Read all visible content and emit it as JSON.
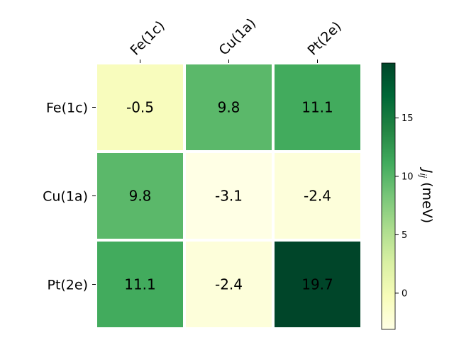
{
  "chart_data": {
    "type": "heatmap",
    "x_labels": [
      "Fe(1c)",
      "Cu(1a)",
      "Pt(2e)"
    ],
    "y_labels": [
      "Fe(1c)",
      "Cu(1a)",
      "Pt(2e)"
    ],
    "values": [
      [
        -0.5,
        9.8,
        11.1
      ],
      [
        9.8,
        -3.1,
        -2.4
      ],
      [
        11.1,
        -2.4,
        19.7
      ]
    ],
    "cell_labels": [
      [
        "-0.5",
        "9.8",
        "11.1"
      ],
      [
        "9.8",
        "-3.1",
        "-2.4"
      ],
      [
        "11.1",
        "-2.4",
        "19.7"
      ]
    ],
    "colorbar": {
      "label": "J_ij (meV)",
      "label_main": "J",
      "label_sub": "ij",
      "label_unit": " (meV)",
      "ticks": [
        0,
        5,
        10,
        15
      ],
      "tick_labels": [
        "0",
        "5",
        "10",
        "15"
      ],
      "vmin": -3.1,
      "vmax": 19.7,
      "colormap": "YlGn"
    },
    "colors": {
      "cmap_stops": [
        "#ffffe5",
        "#f7fcb9",
        "#d9f0a3",
        "#addd8e",
        "#78c679",
        "#41ab5d",
        "#238443",
        "#006837",
        "#004529"
      ],
      "text_dark": "#000000",
      "text_light": "#ffffff"
    }
  }
}
